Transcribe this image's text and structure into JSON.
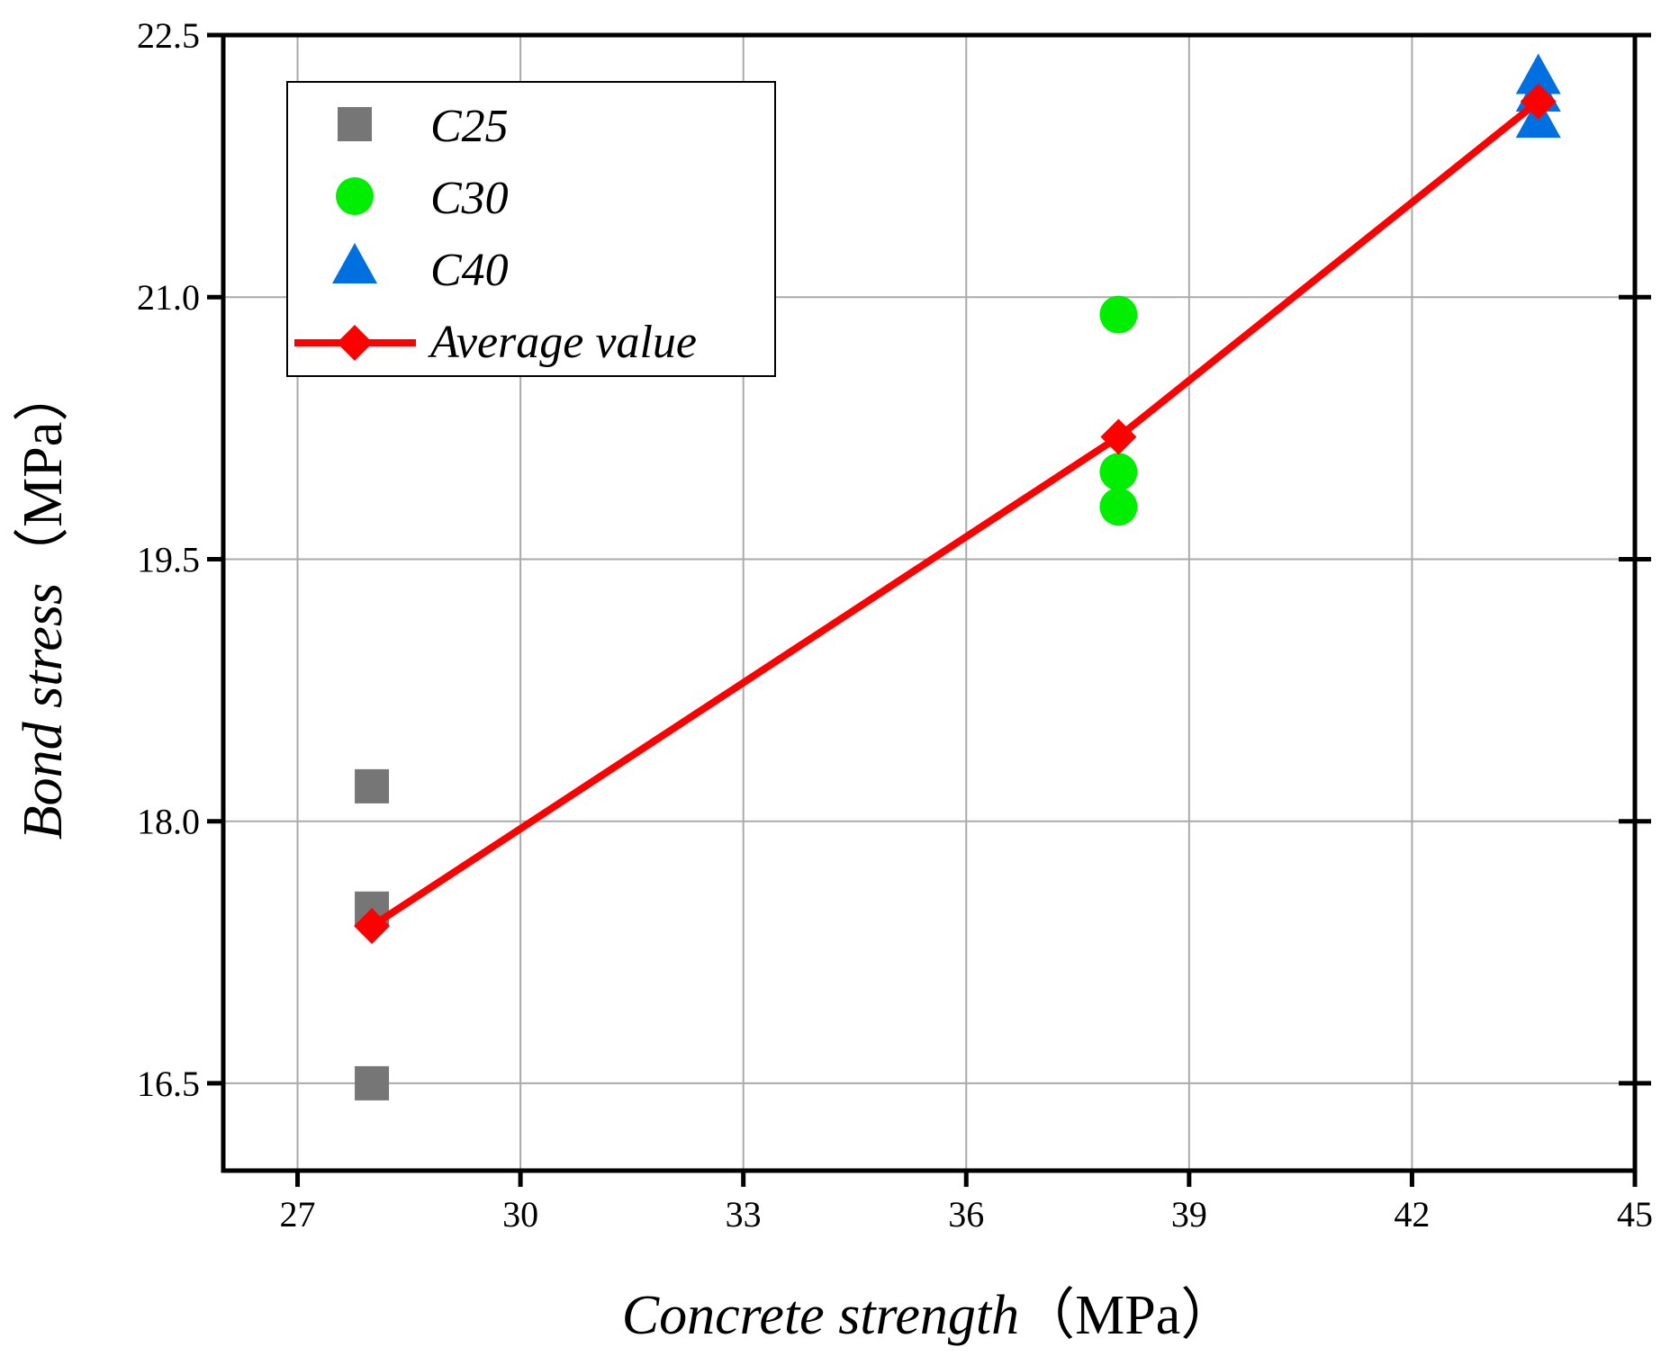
{
  "chart_data": {
    "type": "scatter",
    "title": "",
    "xlabel": "Concrete strength",
    "xlabel_unit": "（MPa）",
    "ylabel": "Bond stress",
    "ylabel_unit": "（MPa）",
    "xlim": [
      26,
      45
    ],
    "ylim": [
      16.0,
      22.5
    ],
    "xticks": [
      27,
      30,
      33,
      36,
      39,
      42,
      45
    ],
    "xtick_labels": [
      "27",
      "30",
      "33",
      "36",
      "39",
      "42",
      "45"
    ],
    "yticks": [
      16.5,
      18.0,
      19.5,
      21.0,
      22.5
    ],
    "ytick_labels": [
      "16.5",
      "18.0",
      "19.5",
      "21.0",
      "22.5"
    ],
    "grid": true,
    "legend_position": "top-left",
    "series": [
      {
        "name": "C25",
        "marker": "square",
        "color": "#767676",
        "x": [
          28,
          28,
          28
        ],
        "y": [
          18.2,
          17.5,
          16.5
        ]
      },
      {
        "name": "C30",
        "marker": "circle",
        "color": "#00ee00",
        "x": [
          38.05,
          38.05,
          38.05
        ],
        "y": [
          20.9,
          20.0,
          19.8
        ]
      },
      {
        "name": "C40",
        "marker": "triangle",
        "color": "#0070e0",
        "x": [
          43.7,
          43.7,
          43.7
        ],
        "y": [
          22.25,
          22.15,
          22.0
        ]
      },
      {
        "name": "Average value",
        "marker": "diamond",
        "line": true,
        "color": "#ff0000",
        "x": [
          28,
          38.05,
          43.7
        ],
        "y": [
          17.4,
          20.2,
          22.12
        ]
      }
    ]
  }
}
